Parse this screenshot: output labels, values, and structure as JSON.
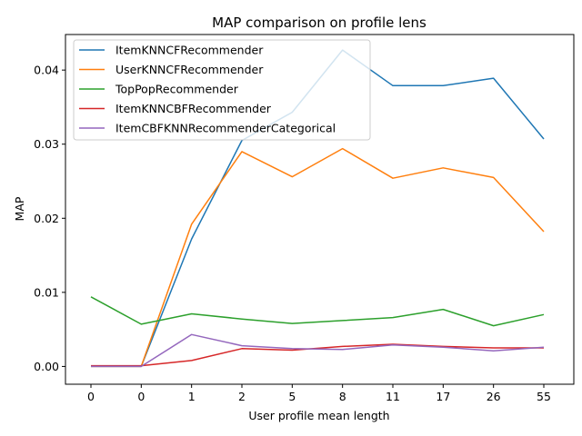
{
  "chart_data": {
    "type": "line",
    "title": "MAP comparison on profile lens",
    "xlabel": "User profile mean length",
    "ylabel": "MAP",
    "categories": [
      "0",
      "0",
      "1",
      "2",
      "5",
      "8",
      "11",
      "17",
      "26",
      "55"
    ],
    "ylim": [
      -0.0024,
      0.0448
    ],
    "yticks": [
      "0.00",
      "0.01",
      "0.02",
      "0.03",
      "0.04"
    ],
    "grid": false,
    "legend_position": "top-left",
    "series": [
      {
        "name": "ItemKNNCFRecommender",
        "color": "#1f77b4",
        "values": [
          0.0,
          0.0,
          0.0172,
          0.0305,
          0.0343,
          0.0427,
          0.0379,
          0.0379,
          0.0389,
          0.0307
        ]
      },
      {
        "name": "UserKNNCFRecommender",
        "color": "#ff7f0e",
        "values": [
          0.0,
          0.0,
          0.0192,
          0.029,
          0.0256,
          0.0294,
          0.0254,
          0.0268,
          0.0255,
          0.0182
        ]
      },
      {
        "name": "TopPopRecommender",
        "color": "#2ca02c",
        "values": [
          0.0094,
          0.0057,
          0.0071,
          0.0064,
          0.0058,
          0.0062,
          0.0066,
          0.0077,
          0.0055,
          0.007
        ]
      },
      {
        "name": "ItemKNNCBFRecommender",
        "color": "#d62728",
        "values": [
          0.0001,
          0.0001,
          0.0008,
          0.0024,
          0.0022,
          0.0027,
          0.003,
          0.0027,
          0.0025,
          0.0025
        ]
      },
      {
        "name": "ItemCBFKNNRecommenderCategorical",
        "color": "#9467bd",
        "values": [
          0.0,
          0.0,
          0.0043,
          0.0028,
          0.0024,
          0.0023,
          0.0029,
          0.0026,
          0.0021,
          0.0026
        ]
      }
    ]
  }
}
